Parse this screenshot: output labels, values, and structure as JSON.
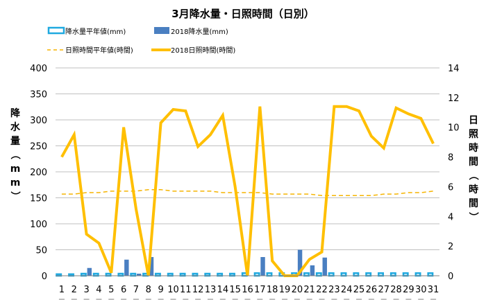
{
  "chart_data": {
    "type": "bar",
    "title": "3月降水量・日照時間（日別）",
    "ylabel": "降水量（mm）",
    "y2label": "日照時間（時間）",
    "ylim": [
      0,
      400
    ],
    "yticks": [
      0,
      50,
      100,
      150,
      200,
      250,
      300,
      350,
      400
    ],
    "y2lim": [
      0,
      14
    ],
    "y2ticks": [
      0,
      2,
      4,
      6,
      8,
      10,
      12,
      14
    ],
    "grid": true,
    "legend_position": "top",
    "categories": [
      "1",
      "2",
      "3",
      "4",
      "5",
      "6",
      "7",
      "8",
      "9",
      "10",
      "11",
      "12",
      "13",
      "14",
      "15",
      "16",
      "17",
      "18",
      "19",
      "20",
      "21",
      "22",
      "23",
      "24",
      "25",
      "26",
      "27",
      "28",
      "29",
      "30",
      "31"
    ],
    "series": [
      {
        "name": "降水量平年値(mm)",
        "kind": "bar-outline",
        "axis": "left",
        "color": "#1fa9e0",
        "values": [
          3,
          3,
          4,
          4,
          4,
          4,
          4,
          4,
          4,
          4,
          4,
          4,
          4,
          4,
          4,
          5,
          5,
          5,
          5,
          5,
          5,
          5,
          5,
          5,
          5,
          5,
          5,
          5,
          5,
          5,
          5
        ]
      },
      {
        "name": "2018降水量(mm)",
        "kind": "bar",
        "axis": "left",
        "color": "#4a7fc1",
        "values": [
          0,
          0,
          15,
          0,
          0,
          31,
          4,
          36,
          0,
          0,
          0,
          0,
          0,
          0,
          0,
          0,
          36,
          0,
          0,
          50,
          20,
          35,
          0,
          0,
          0,
          0,
          0,
          0,
          0,
          0,
          0
        ]
      },
      {
        "name": "日照時間平年値(時間)",
        "kind": "line-dashed",
        "axis": "right",
        "color": "#f5b400",
        "values": [
          5.5,
          5.5,
          5.6,
          5.6,
          5.7,
          5.7,
          5.7,
          5.8,
          5.8,
          5.7,
          5.7,
          5.7,
          5.7,
          5.6,
          5.6,
          5.6,
          5.6,
          5.5,
          5.5,
          5.5,
          5.5,
          5.4,
          5.4,
          5.4,
          5.4,
          5.4,
          5.5,
          5.5,
          5.6,
          5.6,
          5.7
        ]
      },
      {
        "name": "2018日照時間(時間)",
        "kind": "line",
        "axis": "right",
        "color": "#ffbf00",
        "values": [
          8.0,
          9.5,
          2.8,
          2.2,
          0.2,
          10.0,
          4.5,
          0.0,
          10.3,
          11.2,
          11.1,
          8.7,
          9.5,
          10.8,
          6.0,
          0.0,
          11.4,
          1.0,
          0.0,
          0.0,
          1.1,
          1.6,
          11.4,
          11.4,
          11.1,
          9.4,
          8.6,
          11.3,
          10.9,
          10.6,
          8.9
        ]
      }
    ]
  }
}
